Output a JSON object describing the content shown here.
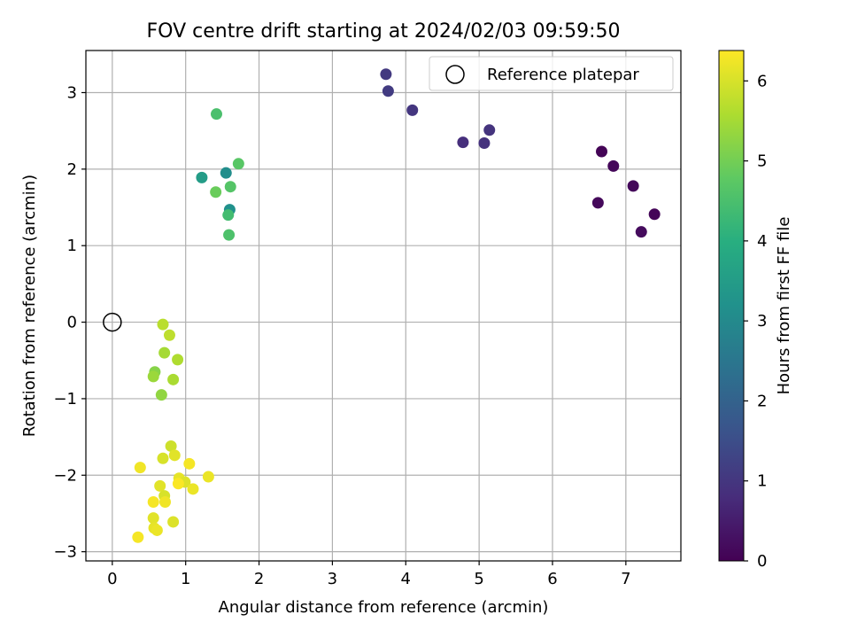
{
  "chart_data": {
    "type": "scatter",
    "title": "FOV centre drift starting at 2024/02/03 09:59:50",
    "xlabel": "Angular distance from reference (arcmin)",
    "ylabel": "Rotation from reference (arcmin)",
    "xlim": [
      -0.36,
      7.75
    ],
    "ylim": [
      -3.12,
      3.55
    ],
    "xticks": [
      0,
      1,
      2,
      3,
      4,
      5,
      6,
      7
    ],
    "xtick_labels": [
      "0",
      "1",
      "2",
      "3",
      "4",
      "5",
      "6",
      "7"
    ],
    "yticks": [
      -3,
      -2,
      -1,
      0,
      1,
      2,
      3
    ],
    "ytick_labels": [
      "−3",
      "−2",
      "−1",
      "0",
      "1",
      "2",
      "3"
    ],
    "grid": true,
    "legend": {
      "position": "top-right",
      "entries": [
        "Reference platepar"
      ]
    },
    "reference_point": {
      "x": 0.0,
      "y": 0.0
    },
    "colorbar": {
      "label": "Hours from first FF file",
      "range": [
        0,
        6.38
      ],
      "ticks": [
        0,
        1,
        2,
        3,
        4,
        5,
        6
      ],
      "tick_labels": [
        "0",
        "1",
        "2",
        "3",
        "4",
        "5",
        "6"
      ],
      "colormap": "viridis"
    },
    "points": [
      {
        "x": 6.67,
        "y": 2.23,
        "c": 0.05
      },
      {
        "x": 6.83,
        "y": 2.04,
        "c": 0.1
      },
      {
        "x": 7.1,
        "y": 1.78,
        "c": 0.12
      },
      {
        "x": 6.62,
        "y": 1.56,
        "c": 0.15
      },
      {
        "x": 7.39,
        "y": 1.41,
        "c": 0.08
      },
      {
        "x": 7.21,
        "y": 1.18,
        "c": 0.18
      },
      {
        "x": 3.73,
        "y": 3.24,
        "c": 1.05
      },
      {
        "x": 3.76,
        "y": 3.02,
        "c": 1.1
      },
      {
        "x": 4.09,
        "y": 2.77,
        "c": 1.0
      },
      {
        "x": 5.14,
        "y": 2.51,
        "c": 0.95
      },
      {
        "x": 4.78,
        "y": 2.35,
        "c": 0.85
      },
      {
        "x": 5.07,
        "y": 2.34,
        "c": 0.9
      },
      {
        "x": 1.42,
        "y": 2.72,
        "c": 4.5
      },
      {
        "x": 1.72,
        "y": 2.07,
        "c": 4.7
      },
      {
        "x": 1.55,
        "y": 1.95,
        "c": 3.1
      },
      {
        "x": 1.22,
        "y": 1.89,
        "c": 3.5
      },
      {
        "x": 1.61,
        "y": 1.77,
        "c": 4.65
      },
      {
        "x": 1.41,
        "y": 1.7,
        "c": 4.9
      },
      {
        "x": 1.6,
        "y": 1.47,
        "c": 3.2
      },
      {
        "x": 1.58,
        "y": 1.4,
        "c": 4.4
      },
      {
        "x": 1.59,
        "y": 1.14,
        "c": 4.55
      },
      {
        "x": 0.69,
        "y": -0.03,
        "c": 5.7
      },
      {
        "x": 0.78,
        "y": -0.17,
        "c": 5.75
      },
      {
        "x": 0.71,
        "y": -0.4,
        "c": 5.5
      },
      {
        "x": 0.89,
        "y": -0.49,
        "c": 5.6
      },
      {
        "x": 0.58,
        "y": -0.65,
        "c": 5.2
      },
      {
        "x": 0.56,
        "y": -0.71,
        "c": 5.4
      },
      {
        "x": 0.83,
        "y": -0.75,
        "c": 5.55
      },
      {
        "x": 0.67,
        "y": -0.95,
        "c": 5.3
      },
      {
        "x": 0.8,
        "y": -1.62,
        "c": 5.9
      },
      {
        "x": 0.85,
        "y": -1.74,
        "c": 6.1
      },
      {
        "x": 0.69,
        "y": -1.78,
        "c": 6.0
      },
      {
        "x": 1.05,
        "y": -1.85,
        "c": 6.3
      },
      {
        "x": 0.38,
        "y": -1.9,
        "c": 6.25
      },
      {
        "x": 1.31,
        "y": -2.02,
        "c": 6.2
      },
      {
        "x": 0.91,
        "y": -2.04,
        "c": 6.15
      },
      {
        "x": 0.99,
        "y": -2.09,
        "c": 6.05
      },
      {
        "x": 0.9,
        "y": -2.11,
        "c": 6.35
      },
      {
        "x": 0.65,
        "y": -2.14,
        "c": 6.1
      },
      {
        "x": 1.1,
        "y": -2.18,
        "c": 6.2
      },
      {
        "x": 0.71,
        "y": -2.27,
        "c": 6.0
      },
      {
        "x": 0.56,
        "y": -2.35,
        "c": 6.3
      },
      {
        "x": 0.72,
        "y": -2.35,
        "c": 6.25
      },
      {
        "x": 0.56,
        "y": -2.56,
        "c": 6.1
      },
      {
        "x": 0.83,
        "y": -2.61,
        "c": 6.05
      },
      {
        "x": 0.57,
        "y": -2.69,
        "c": 6.15
      },
      {
        "x": 0.61,
        "y": -2.72,
        "c": 6.2
      },
      {
        "x": 0.35,
        "y": -2.81,
        "c": 6.3
      }
    ]
  }
}
